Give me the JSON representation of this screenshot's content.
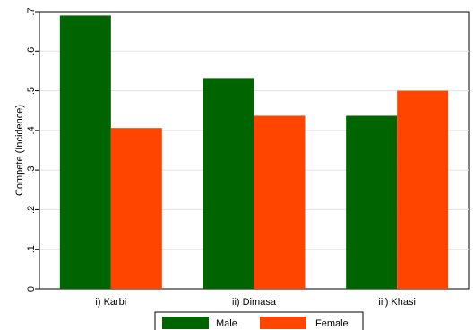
{
  "chart_data": {
    "type": "bar",
    "ylabel": "Compete (Incidence)",
    "xlabel": "",
    "ylim": [
      0,
      0.7
    ],
    "yticks": [
      0,
      0.1,
      0.2,
      0.3,
      0.4,
      0.5,
      0.6,
      0.7
    ],
    "ytick_labels": [
      "0",
      ".1",
      ".2",
      ".3",
      ".4",
      ".5",
      ".6",
      ".7"
    ],
    "categories": [
      "i) Karbi",
      "ii) Dimasa",
      "iii) Khasi"
    ],
    "series": [
      {
        "name": "Male",
        "color": "#006400",
        "values": [
          0.69,
          0.532,
          0.437
        ]
      },
      {
        "name": "Female",
        "color": "#FF4500",
        "values": [
          0.406,
          0.437,
          0.5
        ]
      }
    ],
    "grid": true,
    "legend_position": "bottom"
  }
}
